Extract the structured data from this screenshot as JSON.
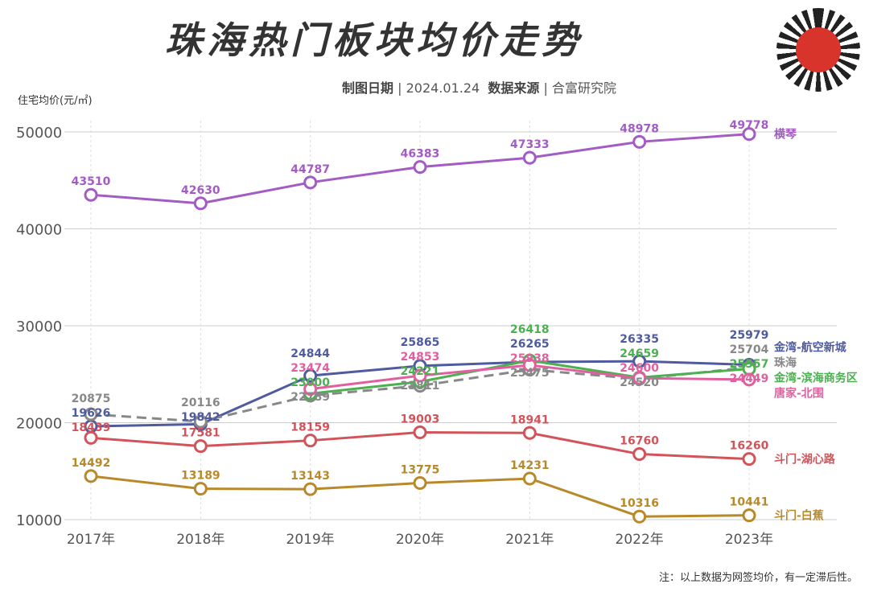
{
  "chart_data": {
    "type": "line",
    "title": "珠海热门板块均价走势",
    "subtitle": {
      "date_label": "制图日期",
      "date": "2024.01.24",
      "source_label": "数据来源",
      "source": "合富研究院"
    },
    "ylabel": "住宅均价(元/㎡)",
    "note": "注：以上数据为网签均价，有一定滞后性。",
    "categories": [
      "2017年",
      "2018年",
      "2019年",
      "2020年",
      "2021年",
      "2022年",
      "2023年"
    ],
    "yticks": [
      10000,
      20000,
      30000,
      40000,
      50000
    ],
    "ylim": [
      10000,
      50000
    ],
    "grid": true,
    "series": [
      {
        "name": "横琴",
        "color": "#a35cc4",
        "values": [
          43510,
          42630,
          44787,
          46383,
          47333,
          48978,
          49778
        ]
      },
      {
        "name": "金湾-航空新城",
        "color": "#4f5b9e",
        "values": [
          19626,
          19842,
          24844,
          25865,
          26265,
          26335,
          25979
        ]
      },
      {
        "name": "珠海",
        "color": "#888888",
        "dashed": true,
        "values": [
          20875,
          20116,
          22789,
          23811,
          25475,
          24520,
          25704
        ]
      },
      {
        "name": "金湾-滨海商务区",
        "color": "#4caf50",
        "values": [
          null,
          null,
          23000,
          24221,
          26418,
          24659,
          25557
        ]
      },
      {
        "name": "唐家-北围",
        "color": "#e0609f",
        "values": [
          null,
          null,
          23474,
          24853,
          25938,
          24600,
          24449
        ]
      },
      {
        "name": "斗门-湖心路",
        "color": "#d2545a",
        "values": [
          18439,
          17581,
          18159,
          19003,
          18941,
          16760,
          16260
        ]
      },
      {
        "name": "斗门-白蕉",
        "color": "#b8892a",
        "values": [
          14492,
          13189,
          13143,
          13775,
          14231,
          10316,
          10441
        ]
      }
    ]
  }
}
